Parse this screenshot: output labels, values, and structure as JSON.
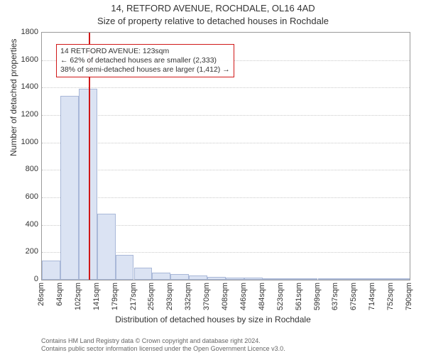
{
  "title_line1": "14, RETFORD AVENUE, ROCHDALE, OL16 4AD",
  "title_line2": "Size of property relative to detached houses in Rochdale",
  "y_axis_label": "Number of detached properties",
  "x_axis_label": "Distribution of detached houses by size in Rochdale",
  "footer_line1": "Contains HM Land Registry data © Crown copyright and database right 2024.",
  "footer_line2": "Contains public sector information licensed under the Open Government Licence v3.0.",
  "chart": {
    "type": "histogram",
    "background_color": "#ffffff",
    "axis_color": "#9a9a9a",
    "grid_color": "#c9c9c9",
    "bar_fill": "#dbe3f3",
    "bar_stroke": "#a9b8d8",
    "marker_color": "#d01818",
    "annotation_border": "#d01818",
    "text_color": "#333333",
    "ylim": [
      0,
      1800
    ],
    "ytick_step": 200,
    "bin_width_sqm": 38,
    "bin_start_sqm": 26,
    "x_tick_labels": [
      "26sqm",
      "64sqm",
      "102sqm",
      "141sqm",
      "179sqm",
      "217sqm",
      "255sqm",
      "293sqm",
      "332sqm",
      "370sqm",
      "408sqm",
      "446sqm",
      "484sqm",
      "523sqm",
      "561sqm",
      "599sqm",
      "637sqm",
      "675sqm",
      "714sqm",
      "752sqm",
      "790sqm"
    ],
    "values": [
      140,
      1340,
      1390,
      480,
      180,
      90,
      50,
      40,
      30,
      20,
      18,
      14,
      10,
      8,
      6,
      5,
      4,
      3,
      2,
      2
    ],
    "subject_value_sqm": 123,
    "title_fontsize": 13,
    "label_fontsize": 12,
    "tick_fontsize": 11,
    "annotation_fontsize": 10.5,
    "footer_fontsize": 9
  },
  "annotation": {
    "line1": "14 RETFORD AVENUE: 123sqm",
    "line2": "← 62% of detached houses are smaller (2,333)",
    "line3": "38% of semi-detached houses are larger (1,412) →"
  }
}
